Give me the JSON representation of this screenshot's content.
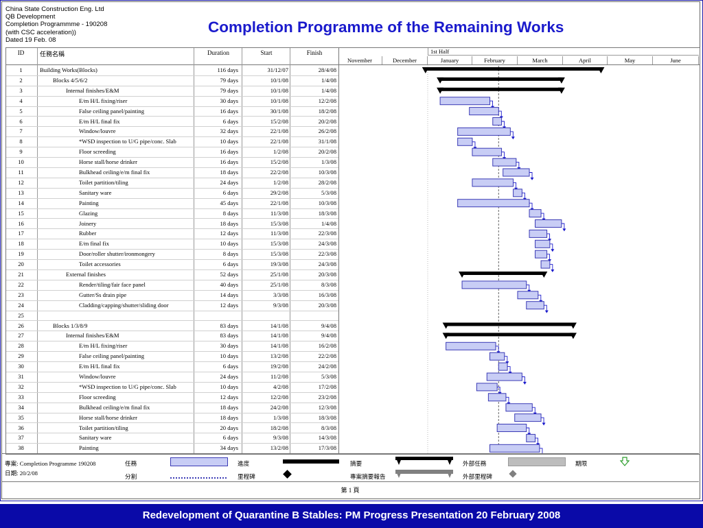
{
  "header": {
    "lines": [
      "China State Construction Eng. Ltd",
      "QB Development",
      "Completion Programmme - 190208",
      "(with CSC acceleration))",
      "Dated 19 Feb. 08"
    ],
    "title": "Completion Programme of the Remaining Works"
  },
  "table": {
    "headers": {
      "id": "ID",
      "name": "任務名稱",
      "duration": "Duration",
      "start": "Start",
      "finish": "Finish"
    }
  },
  "timeline": {
    "half_label": "1st Half",
    "months": [
      "November",
      "December",
      "January",
      "February",
      "March",
      "April",
      "May",
      "June"
    ],
    "status_date": "19/2/08"
  },
  "chart_data": {
    "type": "gantt",
    "title": "Completion Programme of the Remaining Works",
    "tasks": [
      {
        "id": "1",
        "name": "Building Works(Blocks)",
        "level": 0,
        "duration": "116 days",
        "start": "31/12/07",
        "finish": "28/4/08",
        "summary": true
      },
      {
        "id": "2",
        "name": "Blocks 4/5/6/2",
        "level": 1,
        "duration": "79 days",
        "start": "10/1/08",
        "finish": "1/4/08",
        "summary": true
      },
      {
        "id": "3",
        "name": "Internal finishes/E&M",
        "level": 2,
        "duration": "79 days",
        "start": "10/1/08",
        "finish": "1/4/08",
        "summary": true
      },
      {
        "id": "4",
        "name": "E/m H/L fixing/riser",
        "level": 3,
        "duration": "30 days",
        "start": "10/1/08",
        "finish": "12/2/08"
      },
      {
        "id": "5",
        "name": "False ceiling panel/painting",
        "level": 3,
        "duration": "16 days",
        "start": "30/1/08",
        "finish": "18/2/08"
      },
      {
        "id": "6",
        "name": "E/m H/L final fix",
        "level": 3,
        "duration": "6 days",
        "start": "15/2/08",
        "finish": "20/2/08"
      },
      {
        "id": "7",
        "name": "Window/louvre",
        "level": 3,
        "duration": "32 days",
        "start": "22/1/08",
        "finish": "26/2/08"
      },
      {
        "id": "8",
        "name": "*WSD inspection to U/G pipe/conc. Slab",
        "level": 3,
        "duration": "10 days",
        "start": "22/1/08",
        "finish": "31/1/08"
      },
      {
        "id": "9",
        "name": "Floor screeding",
        "level": 3,
        "duration": "16 days",
        "start": "1/2/08",
        "finish": "20/2/08"
      },
      {
        "id": "10",
        "name": "Horse stall/horse drinker",
        "level": 3,
        "duration": "16 days",
        "start": "15/2/08",
        "finish": "1/3/08"
      },
      {
        "id": "11",
        "name": "Bulkhead ceiling/e/m final fix",
        "level": 3,
        "duration": "18 days",
        "start": "22/2/08",
        "finish": "10/3/08"
      },
      {
        "id": "12",
        "name": "Toilet partition/tiling",
        "level": 3,
        "duration": "24 days",
        "start": "1/2/08",
        "finish": "28/2/08"
      },
      {
        "id": "13",
        "name": "Sanitary ware",
        "level": 3,
        "duration": "6 days",
        "start": "29/2/08",
        "finish": "5/3/08"
      },
      {
        "id": "14",
        "name": "Painting",
        "level": 3,
        "duration": "45 days",
        "start": "22/1/08",
        "finish": "10/3/08"
      },
      {
        "id": "15",
        "name": "Glazing",
        "level": 3,
        "duration": "8 days",
        "start": "11/3/08",
        "finish": "18/3/08"
      },
      {
        "id": "16",
        "name": "Joinery",
        "level": 3,
        "duration": "18 days",
        "start": "15/3/08",
        "finish": "1/4/08"
      },
      {
        "id": "17",
        "name": "Rubber",
        "level": 3,
        "duration": "12 days",
        "start": "11/3/08",
        "finish": "22/3/08"
      },
      {
        "id": "18",
        "name": "E/m final fix",
        "level": 3,
        "duration": "10 days",
        "start": "15/3/08",
        "finish": "24/3/08"
      },
      {
        "id": "19",
        "name": "Door/roller shutter/ironmongery",
        "level": 3,
        "duration": "8 days",
        "start": "15/3/08",
        "finish": "22/3/08"
      },
      {
        "id": "20",
        "name": "Toilet accessories",
        "level": 3,
        "duration": "6 days",
        "start": "19/3/08",
        "finish": "24/3/08"
      },
      {
        "id": "21",
        "name": "External finishes",
        "level": 2,
        "duration": "52 days",
        "start": "25/1/08",
        "finish": "20/3/08",
        "summary": true
      },
      {
        "id": "22",
        "name": "Render/tiling/fair face panel",
        "level": 3,
        "duration": "40 days",
        "start": "25/1/08",
        "finish": "8/3/08"
      },
      {
        "id": "23",
        "name": "Gutter/Ss drain pipe",
        "level": 3,
        "duration": "14 days",
        "start": "3/3/08",
        "finish": "16/3/08"
      },
      {
        "id": "24",
        "name": "Cladding/capping/shutter/sliding door",
        "level": 3,
        "duration": "12 days",
        "start": "9/3/08",
        "finish": "20/3/08"
      },
      {
        "id": "25",
        "name": "",
        "level": 0,
        "duration": "",
        "start": "",
        "finish": "",
        "blank": true
      },
      {
        "id": "26",
        "name": "Blocks 1/3/8/9",
        "level": 1,
        "duration": "83 days",
        "start": "14/1/08",
        "finish": "9/4/08",
        "summary": true
      },
      {
        "id": "27",
        "name": "Internal finishes/E&M",
        "level": 2,
        "duration": "83 days",
        "start": "14/1/08",
        "finish": "9/4/08",
        "summary": true
      },
      {
        "id": "28",
        "name": "E/m H/L fixing/riser",
        "level": 3,
        "duration": "30 days",
        "start": "14/1/08",
        "finish": "16/2/08"
      },
      {
        "id": "29",
        "name": "False ceiling panel/painting",
        "level": 3,
        "duration": "10 days",
        "start": "13/2/08",
        "finish": "22/2/08"
      },
      {
        "id": "30",
        "name": "E/m H/L final fix",
        "level": 3,
        "duration": "6 days",
        "start": "19/2/08",
        "finish": "24/2/08"
      },
      {
        "id": "31",
        "name": "Window/louvre",
        "level": 3,
        "duration": "24 days",
        "start": "11/2/08",
        "finish": "5/3/08"
      },
      {
        "id": "32",
        "name": "*WSD inspection to U/G pipe/conc. Slab",
        "level": 3,
        "duration": "10 days",
        "start": "4/2/08",
        "finish": "17/2/08"
      },
      {
        "id": "33",
        "name": "Floor screeding",
        "level": 3,
        "duration": "12 days",
        "start": "12/2/08",
        "finish": "23/2/08"
      },
      {
        "id": "34",
        "name": "Bulkhead ceiling/e/m final fix",
        "level": 3,
        "duration": "18 days",
        "start": "24/2/08",
        "finish": "12/3/08"
      },
      {
        "id": "35",
        "name": "Horse stall/horse drinker",
        "level": 3,
        "duration": "18 days",
        "start": "1/3/08",
        "finish": "18/3/08"
      },
      {
        "id": "36",
        "name": "Toilet partition/tiling",
        "level": 3,
        "duration": "20 days",
        "start": "18/2/08",
        "finish": "8/3/08"
      },
      {
        "id": "37",
        "name": "Sanitary ware",
        "level": 3,
        "duration": "6 days",
        "start": "9/3/08",
        "finish": "14/3/08"
      },
      {
        "id": "38",
        "name": "Painting",
        "level": 3,
        "duration": "34 days",
        "start": "13/2/08",
        "finish": "17/3/08"
      }
    ]
  },
  "legend": {
    "project": "專案: Completion Programme 190208",
    "date": "日期: 20/2/08",
    "items": [
      "任務",
      "分割",
      "進度",
      "里程碑",
      "摘要",
      "專案摘要報告",
      "外部任務",
      "外部里程碑",
      "期限"
    ]
  },
  "page_number": "第 1 頁",
  "footer": "Redevelopment of Quarantine B Stables: PM Progress Presentation 20 February 2008",
  "colors": {
    "title": "#1a1acc",
    "task_fill": "#c8cdf5",
    "task_border": "#3a3ab5",
    "summary": "#000000",
    "footer_bg": "#0a0aa8",
    "link": "#1a1acc",
    "external": "#bdbdbd",
    "deadline": "#2e9e2e"
  }
}
